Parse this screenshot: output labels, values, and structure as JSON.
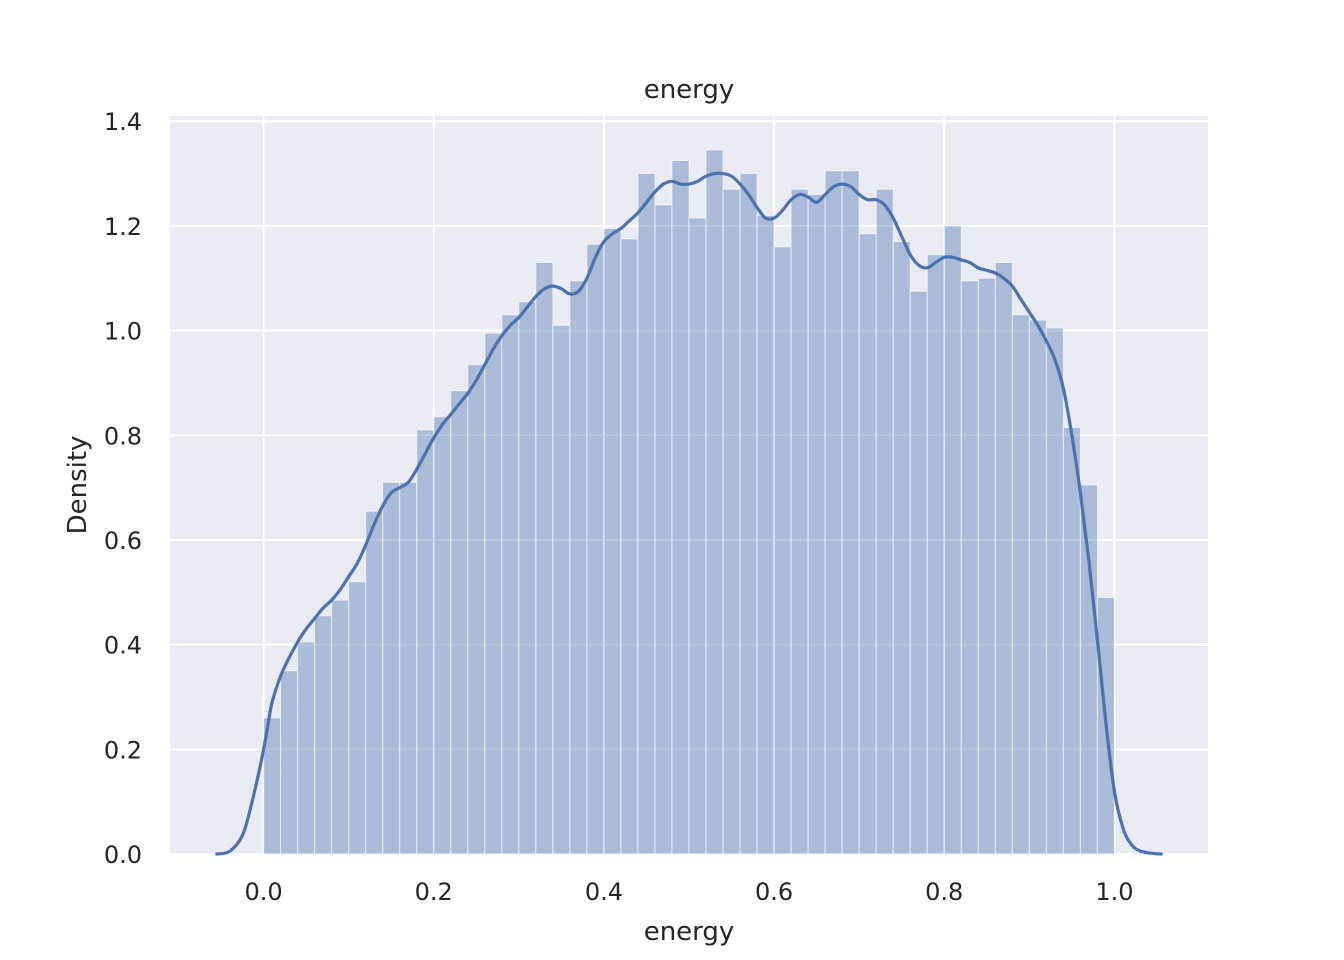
{
  "chart_data": {
    "type": "histogram",
    "title": "energy",
    "xlabel": "energy",
    "ylabel": "Density",
    "xlim": [
      -0.11,
      1.11
    ],
    "ylim": [
      0.0,
      1.41
    ],
    "x_ticks": [
      0.0,
      0.2,
      0.4,
      0.6,
      0.8,
      1.0
    ],
    "x_tick_labels": [
      "0.0",
      "0.2",
      "0.4",
      "0.6",
      "0.8",
      "1.0"
    ],
    "y_ticks": [
      0.0,
      0.2,
      0.4,
      0.6,
      0.8,
      1.0,
      1.2,
      1.4
    ],
    "y_tick_labels": [
      "0.0",
      "0.2",
      "0.4",
      "0.6",
      "0.8",
      "1.0",
      "1.2",
      "1.4"
    ],
    "grid": true,
    "colors": {
      "background": "#EAEAF2",
      "grid": "#FFFFFF",
      "bar": "#4C72B0",
      "bar_opacity": 0.4,
      "line": "#4C72B0"
    },
    "bins": {
      "start": 0.0,
      "width": 0.02,
      "values": [
        0.26,
        0.35,
        0.405,
        0.455,
        0.485,
        0.52,
        0.655,
        0.71,
        0.71,
        0.81,
        0.835,
        0.885,
        0.935,
        0.995,
        1.03,
        1.055,
        1.13,
        1.01,
        1.095,
        1.165,
        1.195,
        1.175,
        1.3,
        1.24,
        1.325,
        1.215,
        1.345,
        1.27,
        1.3,
        1.22,
        1.16,
        1.27,
        1.26,
        1.305,
        1.305,
        1.185,
        1.27,
        1.17,
        1.075,
        1.145,
        1.2,
        1.095,
        1.1,
        1.13,
        1.03,
        1.02,
        1.005,
        0.815,
        0.705,
        0.49
      ]
    },
    "kde": {
      "x": [
        -0.055,
        -0.04,
        -0.025,
        -0.015,
        -0.005,
        0.0,
        0.005,
        0.01,
        0.02,
        0.03,
        0.04,
        0.05,
        0.06,
        0.07,
        0.08,
        0.09,
        0.1,
        0.11,
        0.12,
        0.13,
        0.14,
        0.15,
        0.16,
        0.17,
        0.18,
        0.19,
        0.2,
        0.21,
        0.22,
        0.23,
        0.24,
        0.25,
        0.26,
        0.27,
        0.28,
        0.29,
        0.3,
        0.31,
        0.32,
        0.33,
        0.34,
        0.35,
        0.36,
        0.37,
        0.38,
        0.39,
        0.4,
        0.41,
        0.42,
        0.43,
        0.44,
        0.45,
        0.46,
        0.47,
        0.48,
        0.49,
        0.5,
        0.51,
        0.52,
        0.53,
        0.54,
        0.55,
        0.56,
        0.57,
        0.58,
        0.59,
        0.6,
        0.61,
        0.62,
        0.63,
        0.64,
        0.65,
        0.66,
        0.67,
        0.68,
        0.69,
        0.7,
        0.71,
        0.72,
        0.73,
        0.74,
        0.75,
        0.76,
        0.77,
        0.78,
        0.79,
        0.8,
        0.81,
        0.82,
        0.83,
        0.84,
        0.85,
        0.86,
        0.87,
        0.88,
        0.89,
        0.9,
        0.91,
        0.92,
        0.93,
        0.94,
        0.95,
        0.96,
        0.97,
        0.98,
        0.99,
        1.0,
        1.01,
        1.02,
        1.03,
        1.045,
        1.055
      ],
      "y": [
        0.0,
        0.005,
        0.035,
        0.09,
        0.16,
        0.2,
        0.245,
        0.29,
        0.34,
        0.375,
        0.405,
        0.43,
        0.45,
        0.47,
        0.485,
        0.505,
        0.53,
        0.555,
        0.59,
        0.63,
        0.665,
        0.69,
        0.7,
        0.71,
        0.735,
        0.765,
        0.795,
        0.82,
        0.84,
        0.86,
        0.88,
        0.905,
        0.935,
        0.965,
        0.99,
        1.01,
        1.025,
        1.045,
        1.065,
        1.08,
        1.085,
        1.08,
        1.07,
        1.075,
        1.1,
        1.14,
        1.17,
        1.185,
        1.195,
        1.21,
        1.225,
        1.245,
        1.265,
        1.28,
        1.285,
        1.28,
        1.28,
        1.285,
        1.295,
        1.3,
        1.3,
        1.295,
        1.28,
        1.26,
        1.235,
        1.215,
        1.215,
        1.23,
        1.25,
        1.26,
        1.255,
        1.245,
        1.26,
        1.275,
        1.28,
        1.275,
        1.26,
        1.25,
        1.25,
        1.24,
        1.215,
        1.18,
        1.145,
        1.125,
        1.12,
        1.13,
        1.14,
        1.14,
        1.135,
        1.13,
        1.12,
        1.115,
        1.11,
        1.1,
        1.085,
        1.06,
        1.035,
        1.01,
        0.98,
        0.945,
        0.89,
        0.8,
        0.69,
        0.56,
        0.41,
        0.25,
        0.12,
        0.05,
        0.018,
        0.006,
        0.001,
        0.0
      ]
    }
  }
}
